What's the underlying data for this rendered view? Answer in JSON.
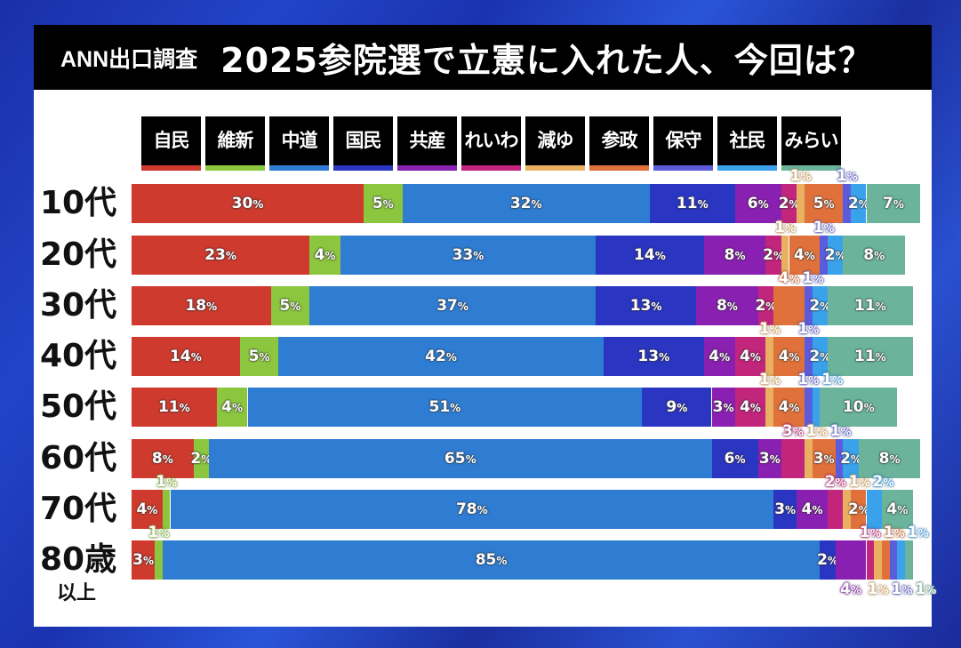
{
  "header": {
    "prefix": "ANN出口調査",
    "title": "2025参院選で立憲に入れた人、今回は？"
  },
  "chart_data": {
    "type": "bar",
    "orientation": "horizontal",
    "stacked": true,
    "unit": "%",
    "categories": [
      "10代",
      "20代",
      "30代",
      "40代",
      "50代",
      "60代",
      "70代",
      "80歳"
    ],
    "category_sublabel": "以上",
    "series": [
      {
        "name": "自民",
        "color": "#cf3a2e",
        "values": [
          30,
          23,
          18,
          14,
          11,
          8,
          4,
          3
        ]
      },
      {
        "name": "維新",
        "color": "#8cc63f",
        "values": [
          5,
          4,
          5,
          5,
          4,
          2,
          1,
          1
        ]
      },
      {
        "name": "中道",
        "color": "#2f7dd3",
        "values": [
          32,
          33,
          37,
          42,
          51,
          65,
          78,
          85
        ]
      },
      {
        "name": "国民",
        "color": "#2a35c2",
        "values": [
          11,
          14,
          13,
          13,
          9,
          6,
          3,
          2
        ]
      },
      {
        "name": "共産",
        "color": "#8a20b2",
        "values": [
          6,
          8,
          8,
          4,
          3,
          3,
          4,
          4
        ]
      },
      {
        "name": "れいわ",
        "color": "#c2257c",
        "values": [
          2,
          2,
          2,
          4,
          4,
          3,
          2,
          1
        ]
      },
      {
        "name": "減ゆ",
        "color": "#e9b062",
        "values": [
          1,
          1,
          0,
          1,
          1,
          1,
          1,
          1
        ]
      },
      {
        "name": "参政",
        "color": "#e0713b",
        "values": [
          5,
          4,
          4,
          4,
          4,
          3,
          2,
          1
        ]
      },
      {
        "name": "保守",
        "color": "#5a5cdc",
        "values": [
          1,
          1,
          1,
          1,
          1,
          1,
          0,
          1
        ]
      },
      {
        "name": "社民",
        "color": "#3aa2ea",
        "values": [
          2,
          2,
          2,
          2,
          1,
          2,
          2,
          1
        ]
      },
      {
        "name": "みらい",
        "color": "#6bb39a",
        "values": [
          7,
          8,
          11,
          11,
          10,
          8,
          4,
          1
        ]
      }
    ]
  }
}
